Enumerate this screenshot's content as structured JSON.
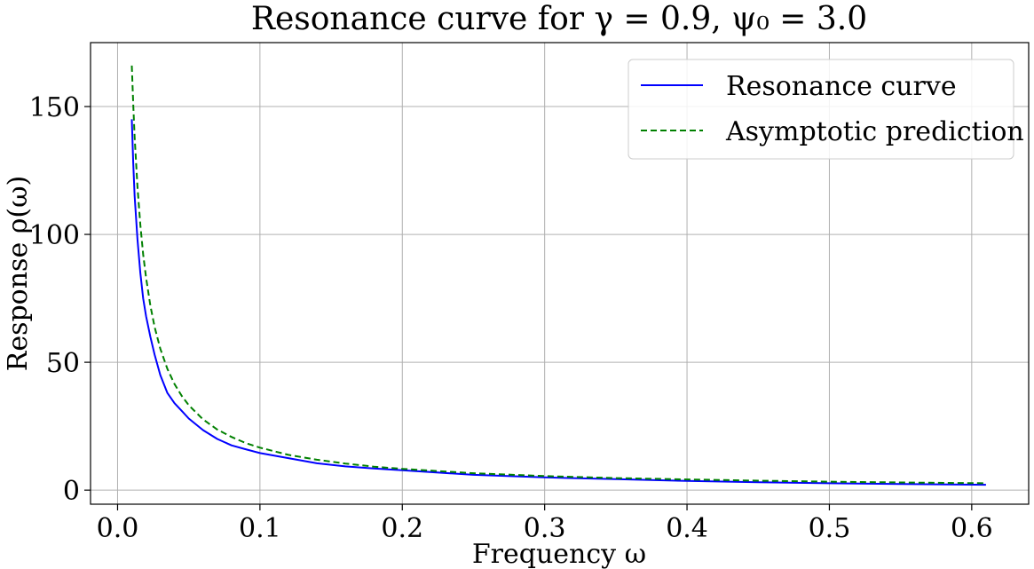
{
  "chart_data": {
    "type": "line",
    "title": "Resonance curve for γ = 0.9, ψ₀ = 3.0",
    "xlabel": "Frequency ω",
    "ylabel": "Response ρ(ω)",
    "xlim": [
      -0.019,
      0.64
    ],
    "ylim": [
      -5.5,
      175
    ],
    "x_ticks": [
      0.0,
      0.1,
      0.2,
      0.3,
      0.4,
      0.5,
      0.6
    ],
    "x_tick_labels": [
      "0.0",
      "0.1",
      "0.2",
      "0.3",
      "0.4",
      "0.5",
      "0.6"
    ],
    "y_ticks": [
      0,
      50,
      100,
      150
    ],
    "y_tick_labels": [
      "0",
      "50",
      "100",
      "150"
    ],
    "grid": true,
    "legend_position": "top-right",
    "series": [
      {
        "name": "Resonance curve",
        "color": "#0000ff",
        "style": "solid",
        "x": [
          0.01,
          0.011,
          0.012,
          0.014,
          0.016,
          0.018,
          0.02,
          0.023,
          0.026,
          0.03,
          0.035,
          0.04,
          0.045,
          0.05,
          0.06,
          0.07,
          0.08,
          0.09,
          0.1,
          0.12,
          0.14,
          0.16,
          0.18,
          0.2,
          0.25,
          0.3,
          0.35,
          0.4,
          0.45,
          0.5,
          0.55,
          0.61
        ],
        "y": [
          145,
          128,
          115,
          98,
          85,
          75,
          68,
          60,
          53,
          45,
          38,
          34,
          31,
          28,
          23.5,
          20,
          17.5,
          16,
          14.5,
          12.5,
          10.5,
          9.3,
          8.5,
          7.8,
          6.0,
          5.0,
          4.3,
          3.6,
          3.1,
          2.7,
          2.4,
          2.1
        ]
      },
      {
        "name": "Asymptotic prediction",
        "color": "#008000",
        "style": "dashed",
        "x": [
          0.01,
          0.011,
          0.012,
          0.014,
          0.016,
          0.018,
          0.02,
          0.023,
          0.026,
          0.03,
          0.035,
          0.04,
          0.045,
          0.05,
          0.06,
          0.07,
          0.08,
          0.09,
          0.1,
          0.12,
          0.14,
          0.16,
          0.18,
          0.2,
          0.25,
          0.3,
          0.35,
          0.4,
          0.45,
          0.5,
          0.55,
          0.61
        ],
        "y": [
          166,
          151,
          138,
          118.6,
          103.8,
          92.2,
          83,
          72.2,
          63.8,
          55.3,
          47.4,
          41.5,
          36.9,
          33.2,
          27.7,
          23.7,
          20.8,
          18.4,
          16.6,
          13.8,
          11.9,
          10.4,
          9.2,
          8.3,
          6.6,
          5.5,
          4.7,
          4.2,
          3.7,
          3.3,
          3.0,
          2.7
        ]
      }
    ]
  }
}
